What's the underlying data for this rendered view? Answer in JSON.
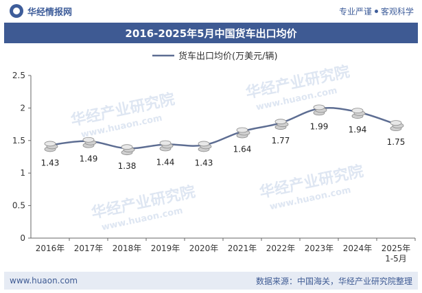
{
  "header": {
    "brand": "华经情报网",
    "slogan_left": "专业严谨",
    "slogan_right": "客观科学"
  },
  "footer": {
    "website": "www.huaon.com",
    "source": "数据来源：中国海关，华经产业研究院整理"
  },
  "watermark": {
    "brand": "华经产业研究院",
    "url": "www.huaon.com"
  },
  "colors": {
    "accent": "#3e5a93",
    "line": "#5d6d92"
  },
  "chart_data": {
    "type": "line",
    "title": "2016-2025年5月中国货车出口均价",
    "categories": [
      "2016年",
      "2017年",
      "2018年",
      "2019年",
      "2020年",
      "2021年",
      "2022年",
      "2023年",
      "2024年",
      "2025年\n1-5月"
    ],
    "series": [
      {
        "name": "货车出口均价(万美元/辆)",
        "values": [
          1.43,
          1.49,
          1.38,
          1.44,
          1.43,
          1.64,
          1.77,
          1.99,
          1.94,
          1.75
        ]
      }
    ],
    "ylim": [
      0,
      2.5
    ],
    "yticks": [
      "0",
      "0.5",
      "1",
      "1.5",
      "2",
      "2.5"
    ],
    "ytick_values": [
      0,
      0.5,
      1,
      1.5,
      2,
      2.5
    ],
    "legend": "top-center",
    "xlabel": "",
    "ylabel": ""
  }
}
